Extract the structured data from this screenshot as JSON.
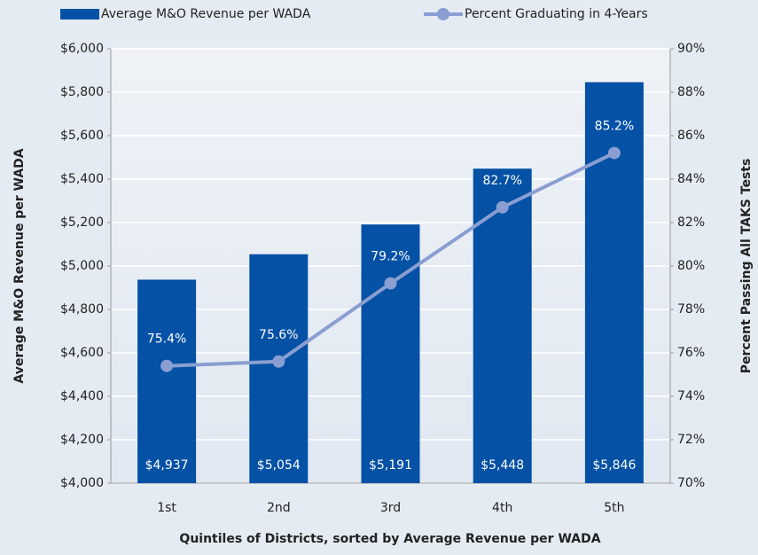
{
  "chart_data": {
    "type": "bar-line",
    "xlabel": "Quintiles of Districts, sorted by Average Revenue per  WADA",
    "ylabel": "Average M&O Revenue per WADA",
    "y2label": "Percent Passing All TAKS Tests",
    "categories": [
      "1st",
      "2nd",
      "3rd",
      "4th",
      "5th"
    ],
    "series": [
      {
        "name": "Average M&O Revenue per WADA",
        "color": "#0451a5",
        "type": "bar",
        "values": [
          4937,
          5054,
          5191,
          5448,
          5846
        ],
        "value_labels": [
          "$4,937",
          "$5,054",
          "$5,191",
          "$5,448",
          "$5,846"
        ]
      },
      {
        "name": "Percent Graduating in 4-Years",
        "color": "#8a9ed2",
        "type": "line",
        "axis": "y2",
        "values": [
          75.4,
          75.6,
          79.2,
          82.7,
          85.2
        ],
        "value_labels": [
          "75.4%",
          "75.6%",
          "79.2%",
          "82.7%",
          "85.2%"
        ]
      }
    ],
    "ylim": [
      4000,
      6000
    ],
    "yticks": [
      {
        "value": 4000,
        "label": "$4,000"
      },
      {
        "value": 4200,
        "label": "$4,200"
      },
      {
        "value": 4400,
        "label": "$4,400"
      },
      {
        "value": 4600,
        "label": "$4,600"
      },
      {
        "value": 4800,
        "label": "$4,800"
      },
      {
        "value": 5000,
        "label": "$5,000"
      },
      {
        "value": 5200,
        "label": "$5,200"
      },
      {
        "value": 5400,
        "label": "$5,400"
      },
      {
        "value": 5600,
        "label": "$5,600"
      },
      {
        "value": 5800,
        "label": "$5,800"
      },
      {
        "value": 6000,
        "label": "$6,000"
      }
    ],
    "y2lim": [
      70,
      90
    ],
    "y2ticks": [
      {
        "value": 70,
        "label": "70%"
      },
      {
        "value": 72,
        "label": "72%"
      },
      {
        "value": 74,
        "label": "74%"
      },
      {
        "value": 76,
        "label": "76%"
      },
      {
        "value": 78,
        "label": "78%"
      },
      {
        "value": 80,
        "label": "80%"
      },
      {
        "value": 82,
        "label": "82%"
      },
      {
        "value": 84,
        "label": "84%"
      },
      {
        "value": 86,
        "label": "86%"
      },
      {
        "value": 88,
        "label": "88%"
      },
      {
        "value": 90,
        "label": "90%"
      }
    ],
    "grid": true,
    "legend": "top"
  }
}
